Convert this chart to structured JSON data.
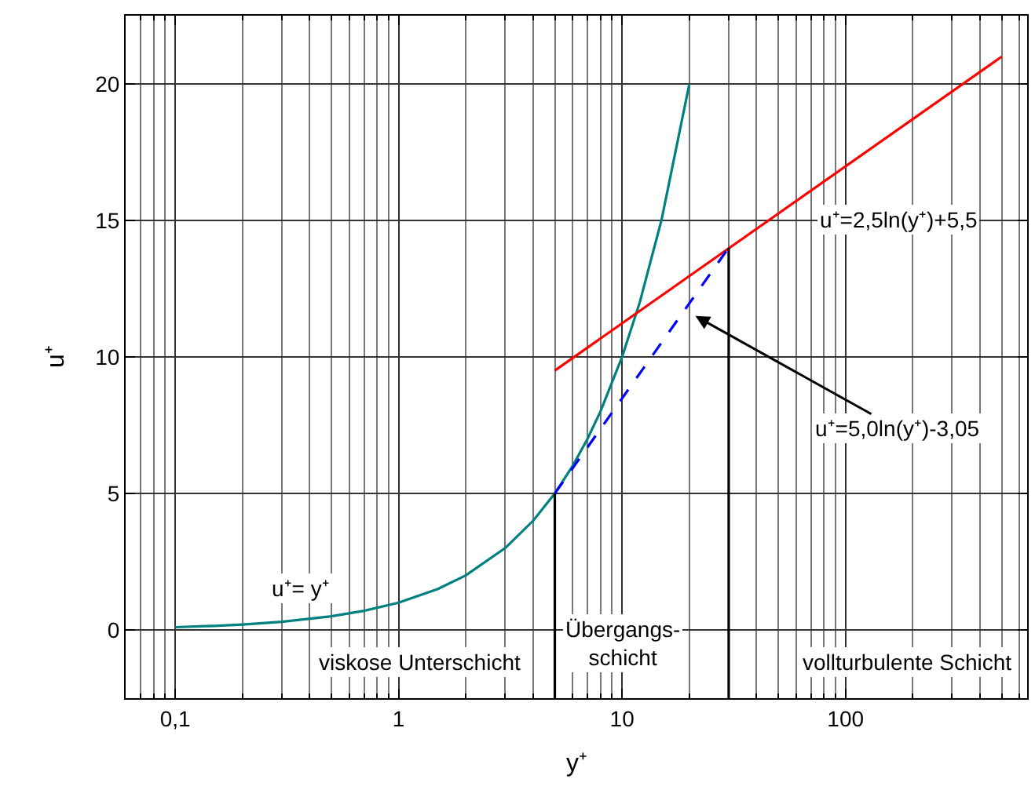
{
  "chart_data": {
    "type": "line",
    "xlabel": "y⁺",
    "ylabel": "u⁺",
    "log": "x",
    "xlim": [
      0.06,
      650
    ],
    "ylim": [
      -2.5,
      22.5
    ],
    "xticks": [
      {
        "value": 0.1,
        "label": "0,1"
      },
      1,
      10,
      100
    ],
    "yticks": [
      0,
      5,
      10,
      15,
      20
    ],
    "grid": true,
    "marker": "none",
    "series": [
      {
        "color": "#008080",
        "x": [
          0.1,
          0.15,
          0.2,
          0.3,
          0.5,
          0.7,
          1,
          1.5,
          2,
          3,
          4,
          5,
          6,
          7,
          8,
          10,
          12,
          15,
          20
        ],
        "values": [
          0.1,
          0.15,
          0.2,
          0.3,
          0.5,
          0.7,
          1,
          1.5,
          2,
          3,
          4,
          5,
          6,
          7,
          8,
          10,
          12,
          15,
          20
        ]
      },
      {
        "color": "#ff0000",
        "x": [
          5,
          500
        ],
        "values": [
          9.5,
          21.0
        ]
      },
      {
        "color": "#0000ff",
        "x": [
          5,
          30
        ],
        "values": [
          5.0,
          14.0
        ],
        "line_style": "dashed"
      },
      {
        "color": "#000000",
        "x": [
          5,
          5
        ],
        "values": [
          -2.5,
          5.0
        ]
      },
      {
        "color": "#000000",
        "x": [
          30,
          30
        ],
        "values": [
          -2.5,
          14.0
        ]
      }
    ],
    "annotations": [
      "u⁺=2,5ln(y⁺)+5,5",
      "u⁺=5,0ln(y⁺)-3,05",
      "u⁺= y⁺",
      "viskose Unterschicht",
      "Übergangs-\nschicht",
      "vollturbulente Schicht"
    ]
  }
}
